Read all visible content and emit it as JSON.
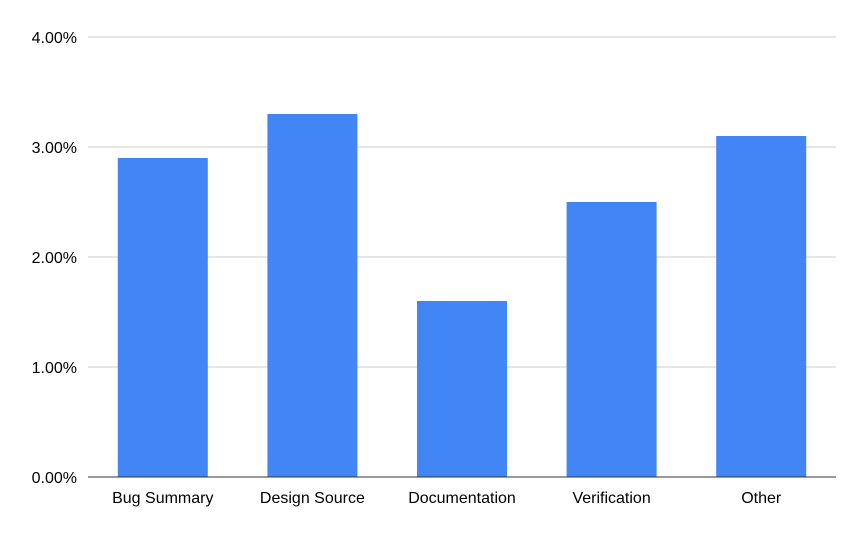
{
  "chart_data": {
    "type": "bar",
    "title": "",
    "xlabel": "",
    "ylabel": "",
    "categories": [
      "Bug Summary",
      "Design Source",
      "Documentation",
      "Verification",
      "Other"
    ],
    "values": [
      2.9,
      3.3,
      1.6,
      2.5,
      3.1
    ],
    "value_unit": "percent",
    "ylim": [
      0,
      4
    ],
    "yticks": [
      0,
      1,
      2,
      3,
      4
    ],
    "ytick_labels": [
      "0.00%",
      "1.00%",
      "2.00%",
      "3.00%",
      "4.00%"
    ],
    "grid": true,
    "legend": "none",
    "bar_color": "#4285f4",
    "grid_color": "#cccccc",
    "axis_color": "#333333"
  }
}
